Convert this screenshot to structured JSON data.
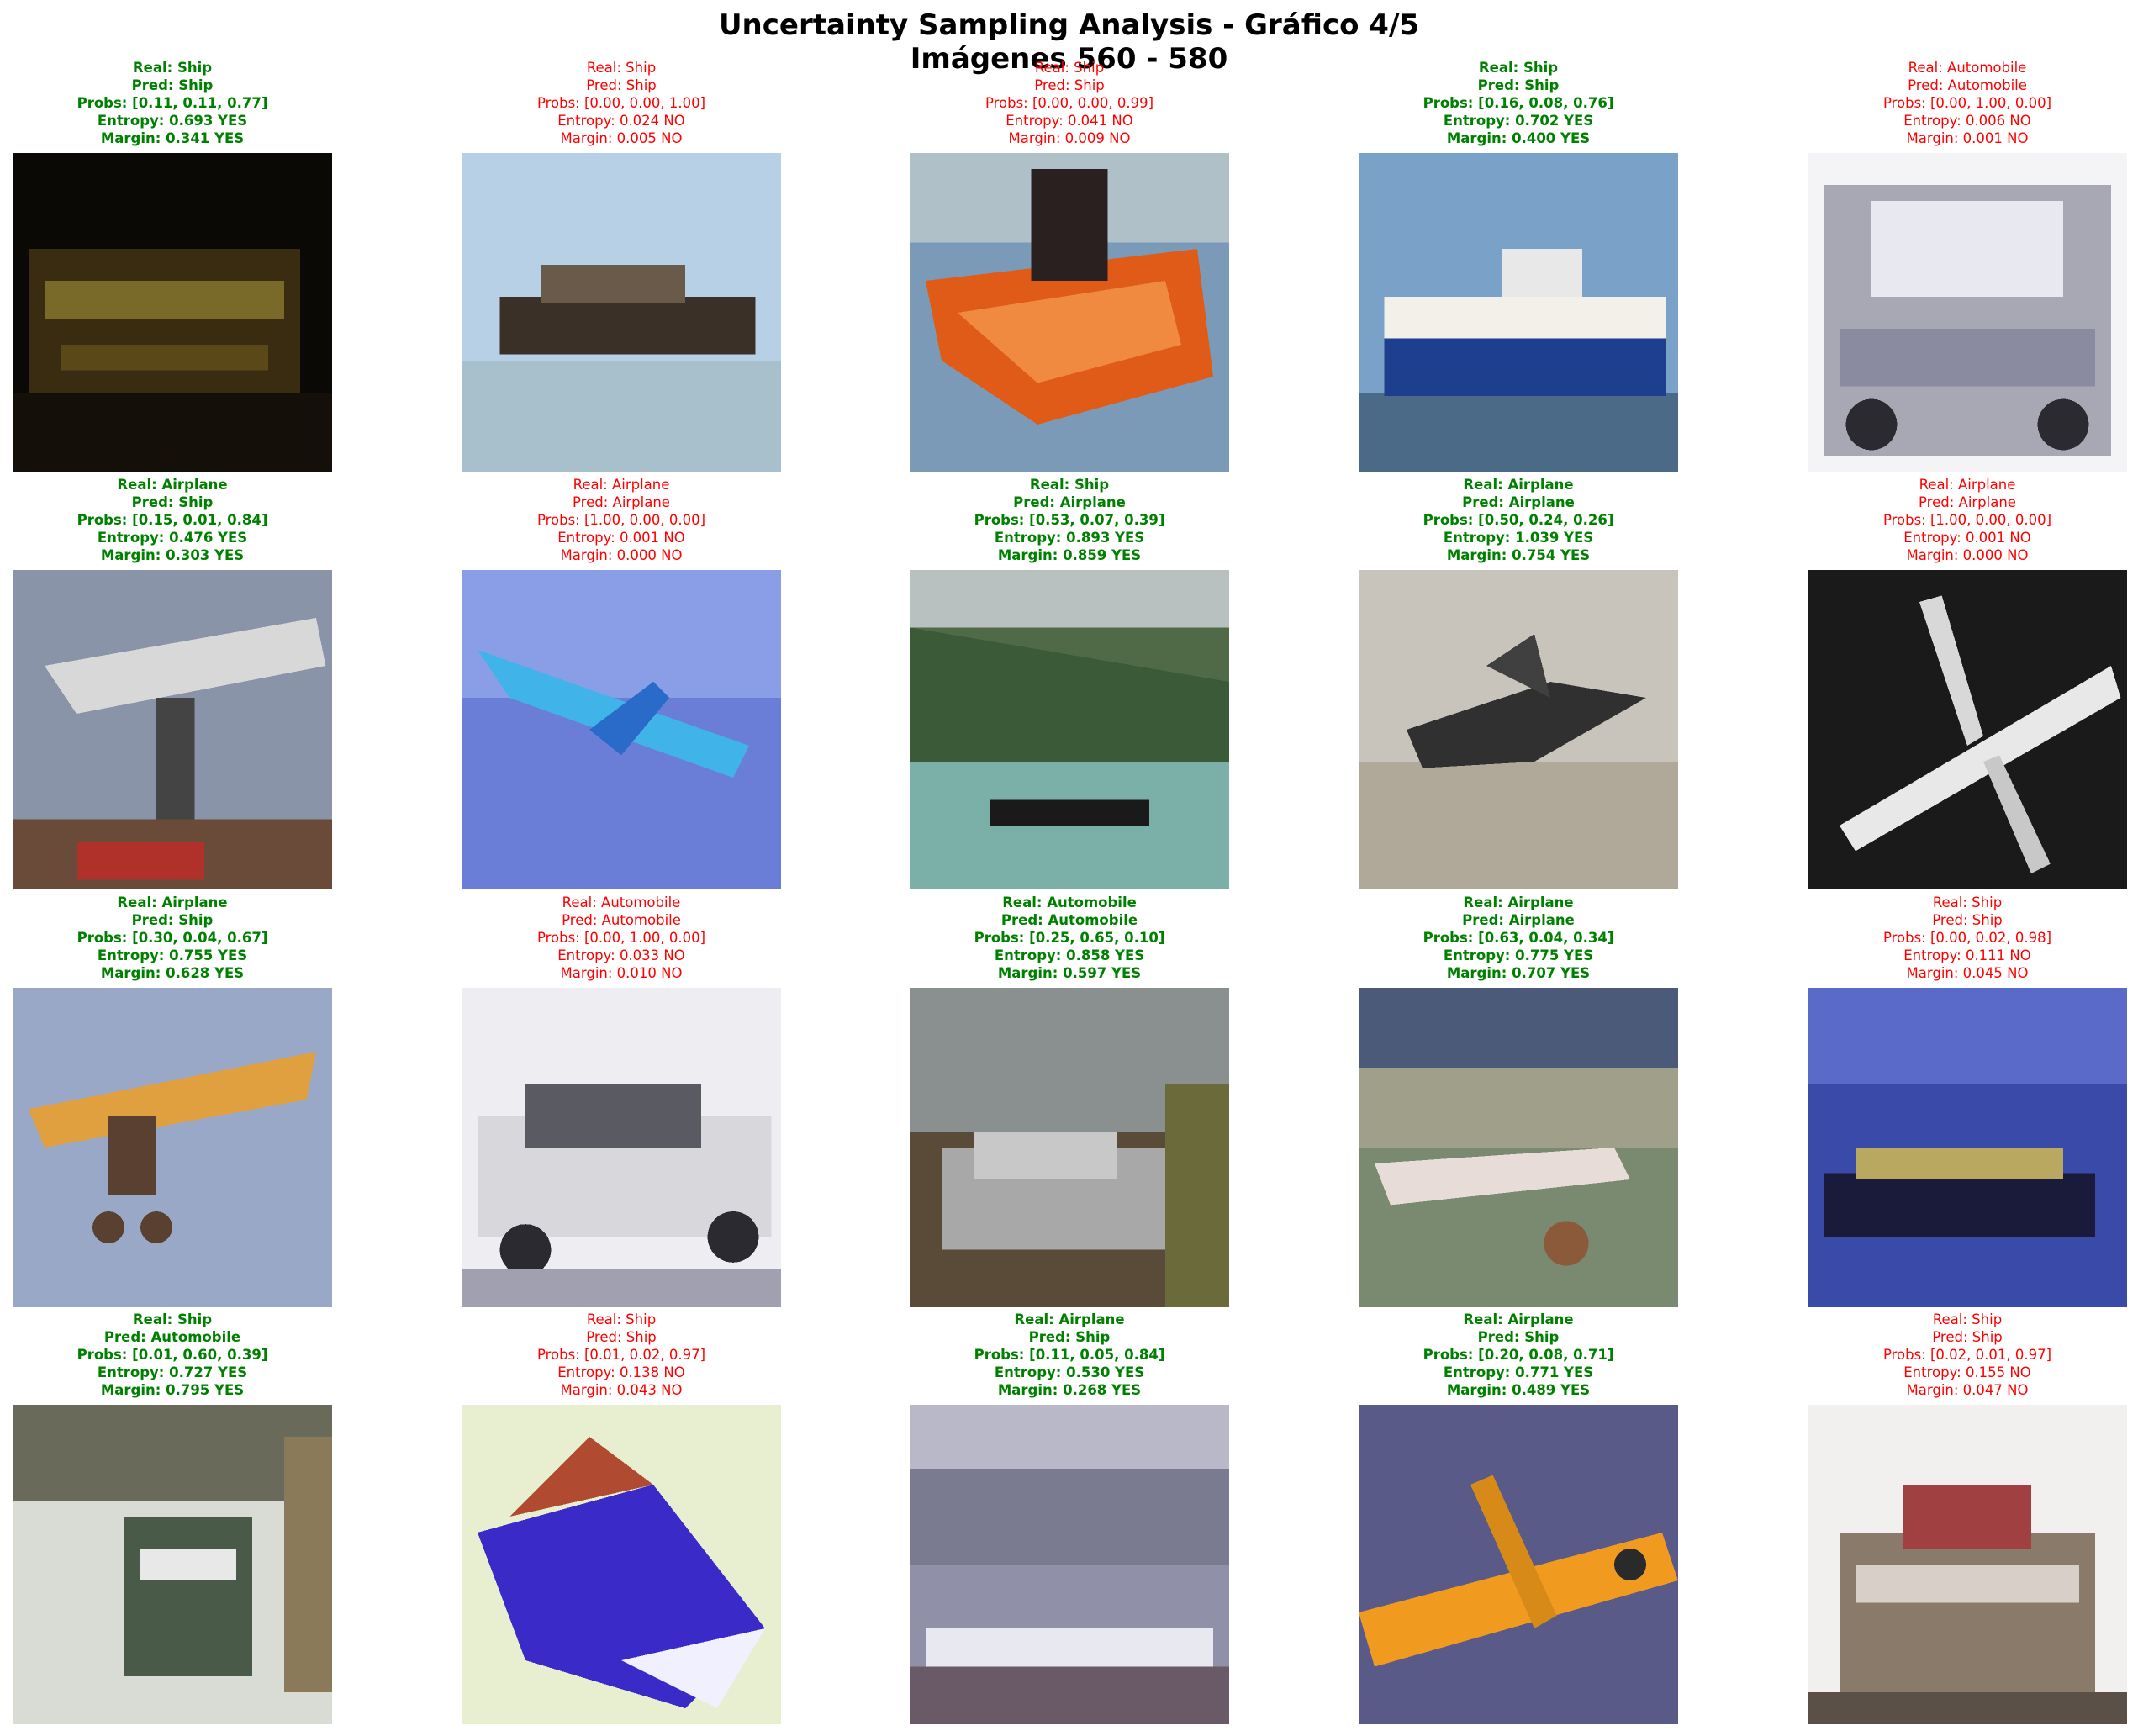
{
  "title": "Uncertainty Sampling Analysis - Gráfico 4/5",
  "subtitle": "Imágenes 560 - 580",
  "colors": {
    "selected": "#008000",
    "not_selected": "#ff0000"
  },
  "samples": [
    {
      "real": "Real: Ship",
      "pred": "Pred: Ship",
      "probs": "Probs: [0.11, 0.11, 0.77]",
      "entropy": "Entropy: 0.693 YES",
      "margin": "Margin: 0.341 YES",
      "selected": true,
      "image": "ship at night"
    },
    {
      "real": "Real: Ship",
      "pred": "Pred: Ship",
      "probs": "Probs: [0.00, 0.00, 1.00]",
      "entropy": "Entropy: 0.024 NO",
      "margin": "Margin: 0.005 NO",
      "selected": false,
      "image": "ship on water"
    },
    {
      "real": "Real: Ship",
      "pred": "Pred: Ship",
      "probs": "Probs: [0.00, 0.00, 0.99]",
      "entropy": "Entropy: 0.041 NO",
      "margin": "Margin: 0.009 NO",
      "selected": false,
      "image": "orange speedboat"
    },
    {
      "real": "Real: Ship",
      "pred": "Pred: Ship",
      "probs": "Probs: [0.16, 0.08, 0.76]",
      "entropy": "Entropy: 0.702 YES",
      "margin": "Margin: 0.400 YES",
      "selected": true,
      "image": "blue and white ship"
    },
    {
      "real": "Real: Automobile",
      "pred": "Pred: Automobile",
      "probs": "Probs: [0.00, 1.00, 0.00]",
      "entropy": "Entropy: 0.006 NO",
      "margin": "Margin: 0.001 NO",
      "selected": false,
      "image": "silver car"
    },
    {
      "real": "Real: Airplane",
      "pred": "Pred: Ship",
      "probs": "Probs: [0.15, 0.01, 0.84]",
      "entropy": "Entropy: 0.476 YES",
      "margin": "Margin: 0.303 YES",
      "selected": true,
      "image": "airplane above tower"
    },
    {
      "real": "Real: Airplane",
      "pred": "Pred: Airplane",
      "probs": "Probs: [1.00, 0.00, 0.00]",
      "entropy": "Entropy: 0.001 NO",
      "margin": "Margin: 0.000 NO",
      "selected": false,
      "image": "blue airliner in sky"
    },
    {
      "real": "Real: Ship",
      "pred": "Pred: Airplane",
      "probs": "Probs: [0.53, 0.07, 0.39]",
      "entropy": "Entropy: 0.893 YES",
      "margin": "Margin: 0.859 YES",
      "selected": true,
      "image": "small boat near hills"
    },
    {
      "real": "Real: Airplane",
      "pred": "Pred: Airplane",
      "probs": "Probs: [0.50, 0.24, 0.26]",
      "entropy": "Entropy: 1.039 YES",
      "margin": "Margin: 0.754 YES",
      "selected": true,
      "image": "dark jet on ground"
    },
    {
      "real": "Real: Airplane",
      "pred": "Pred: Airplane",
      "probs": "Probs: [1.00, 0.00, 0.00]",
      "entropy": "Entropy: 0.001 NO",
      "margin": "Margin: 0.000 NO",
      "selected": false,
      "image": "white airplane on black"
    },
    {
      "real": "Real: Airplane",
      "pred": "Pred: Ship",
      "probs": "Probs: [0.30, 0.04, 0.67]",
      "entropy": "Entropy: 0.755 YES",
      "margin": "Margin: 0.628 YES",
      "selected": true,
      "image": "yellow biplane"
    },
    {
      "real": "Real: Automobile",
      "pred": "Pred: Automobile",
      "probs": "Probs: [0.00, 1.00, 0.00]",
      "entropy": "Entropy: 0.033 NO",
      "margin": "Margin: 0.010 NO",
      "selected": false,
      "image": "white car"
    },
    {
      "real": "Real: Automobile",
      "pred": "Pred: Automobile",
      "probs": "Probs: [0.25, 0.65, 0.10]",
      "entropy": "Entropy: 0.858 YES",
      "margin": "Margin: 0.597 YES",
      "selected": true,
      "image": "grey car in street"
    },
    {
      "real": "Real: Airplane",
      "pred": "Pred: Airplane",
      "probs": "Probs: [0.63, 0.04, 0.34]",
      "entropy": "Entropy: 0.775 YES",
      "margin": "Margin: 0.707 YES",
      "selected": true,
      "image": "airplane on airfield"
    },
    {
      "real": "Real: Ship",
      "pred": "Pred: Ship",
      "probs": "Probs: [0.00, 0.02, 0.98]",
      "entropy": "Entropy: 0.111 NO",
      "margin": "Margin: 0.045 NO",
      "selected": false,
      "image": "boat on blue water"
    },
    {
      "real": "Real: Ship",
      "pred": "Pred: Automobile",
      "probs": "Probs: [0.01, 0.60, 0.39]",
      "entropy": "Entropy: 0.727 YES",
      "margin": "Margin: 0.795 YES",
      "selected": true,
      "image": "white ship hull"
    },
    {
      "real": "Real: Ship",
      "pred": "Pred: Ship",
      "probs": "Probs: [0.01, 0.02, 0.97]",
      "entropy": "Entropy: 0.138 NO",
      "margin": "Margin: 0.043 NO",
      "selected": false,
      "image": "blue speedboat"
    },
    {
      "real": "Real: Airplane",
      "pred": "Pred: Ship",
      "probs": "Probs: [0.11, 0.05, 0.84]",
      "entropy": "Entropy: 0.530 YES",
      "margin": "Margin: 0.268 YES",
      "selected": true,
      "image": "airplane at airport"
    },
    {
      "real": "Real: Airplane",
      "pred": "Pred: Ship",
      "probs": "Probs: [0.20, 0.08, 0.71]",
      "entropy": "Entropy: 0.771 YES",
      "margin": "Margin: 0.489 YES",
      "selected": true,
      "image": "orange airplane"
    },
    {
      "real": "Real: Ship",
      "pred": "Pred: Ship",
      "probs": "Probs: [0.02, 0.01, 0.97]",
      "entropy": "Entropy: 0.155 NO",
      "margin": "Margin: 0.047 NO",
      "selected": false,
      "image": "cargo ship"
    }
  ]
}
